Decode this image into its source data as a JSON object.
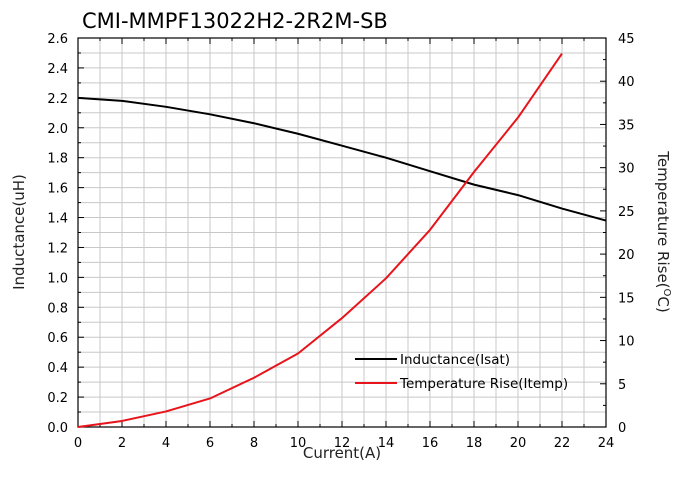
{
  "chart_data": {
    "type": "line",
    "title": "CMI-MMPF13022H2-2R2M-SB",
    "xlabel": "Current(A)",
    "ylabel_left": "Inductance(uH)",
    "ylabel_right_main": "Temperature Rise(",
    "ylabel_right_sup": "O",
    "ylabel_right_end": "C)",
    "xlim": [
      0,
      24
    ],
    "ylim_left": [
      0,
      2.6
    ],
    "ylim_right": [
      0,
      45
    ],
    "x_ticks": [
      "0",
      "2",
      "4",
      "6",
      "8",
      "10",
      "12",
      "14",
      "16",
      "18",
      "20",
      "22",
      "24"
    ],
    "y_left_ticks": [
      "0.0",
      "0.2",
      "0.4",
      "0.6",
      "0.8",
      "1.0",
      "1.2",
      "1.4",
      "1.6",
      "1.8",
      "2.0",
      "2.2",
      "2.4",
      "2.6"
    ],
    "y_right_ticks": [
      "0",
      "5",
      "10",
      "15",
      "20",
      "25",
      "30",
      "35",
      "40",
      "45"
    ],
    "grid": true,
    "legend_position": "bottom-right",
    "series": [
      {
        "name": "Inductance(Isat)",
        "axis": "left",
        "color": "#000000",
        "x": [
          0,
          2,
          4,
          6,
          8,
          10,
          12,
          14,
          16,
          18,
          20,
          22,
          24
        ],
        "y": [
          2.2,
          2.18,
          2.14,
          2.09,
          2.03,
          1.96,
          1.88,
          1.8,
          1.71,
          1.62,
          1.55,
          1.46,
          1.38
        ]
      },
      {
        "name": "Temperature Rise(Itemp)",
        "axis": "right",
        "color": "#e8141b",
        "x": [
          0,
          2,
          4,
          6,
          8,
          10,
          12,
          14,
          16,
          18,
          20,
          22
        ],
        "y": [
          0,
          0.7,
          1.8,
          3.3,
          5.7,
          8.5,
          12.6,
          17.2,
          22.8,
          29.5,
          35.8,
          43.2
        ]
      }
    ]
  }
}
